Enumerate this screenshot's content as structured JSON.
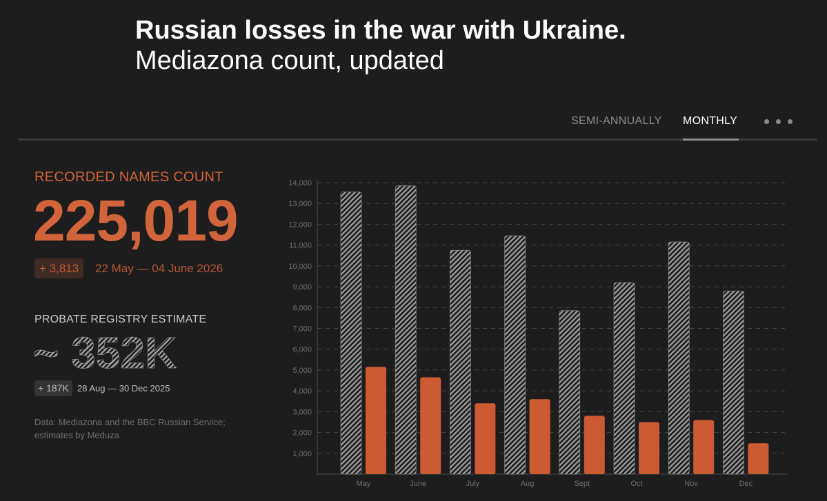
{
  "header": {
    "title": "Russian losses in the war with Ukraine.",
    "subtitle": "Mediazona count, updated"
  },
  "tabs": {
    "semi_annually": "SEMI-ANNUALLY",
    "monthly": "MONTHLY",
    "active": "monthly",
    "more_icon": "more-dots-icon"
  },
  "recorded": {
    "label": "RECORDED NAMES COUNT",
    "value": "225,019",
    "delta": "+ 3,813",
    "range": "22 May — 04 June 2026"
  },
  "probate": {
    "label": "PROBATE REGISTRY ESTIMATE",
    "value": "~ 352K",
    "delta": "+ 187K",
    "range": "28 Aug — 30 Dec 2025"
  },
  "source": "Data: Mediazona and the BBC Russian Service; estimates by Meduza",
  "colors": {
    "background": "#1d1d1d",
    "accent_orange": "#cc5b34",
    "hatch_grey": "#9a9a9a",
    "grid": "#474747"
  },
  "chart_data": {
    "type": "bar",
    "categories": [
      "May",
      "June",
      "July",
      "Aug",
      "Sept",
      "Oct",
      "Nov",
      "Dec"
    ],
    "series": [
      {
        "values": [
          13550,
          13850,
          10750,
          11450,
          7850,
          9200,
          11150,
          8800
        ]
      },
      {
        "values": [
          5150,
          4650,
          3400,
          3600,
          2800,
          2500,
          2600,
          1480
        ]
      }
    ],
    "yticks": [
      1000,
      2000,
      3000,
      4000,
      5000,
      6000,
      7000,
      8000,
      9000,
      10000,
      11000,
      12000,
      13000,
      14000
    ],
    "ytick_labels": [
      "1,000",
      "2,000",
      "3,000",
      "4,000",
      "5,000",
      "6,000",
      "7,000",
      "8,000",
      "9,000",
      "10,000",
      "11,000",
      "12,000",
      "13,000",
      "14,000"
    ],
    "ylim": [
      0,
      14000
    ],
    "grid": true
  }
}
